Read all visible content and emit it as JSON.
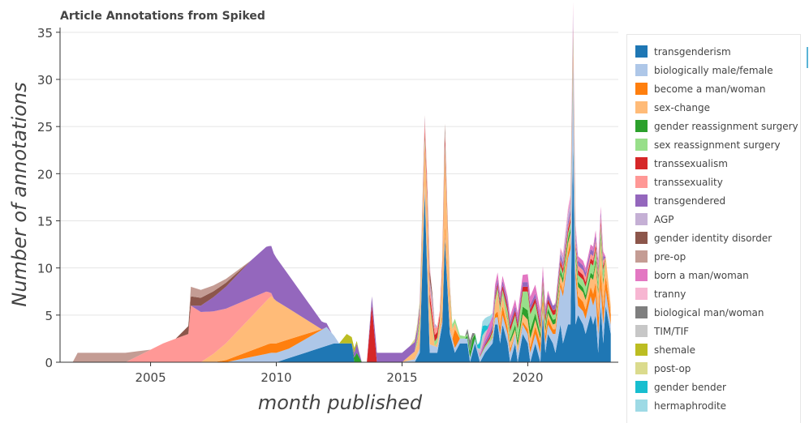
{
  "chart_data": {
    "type": "area",
    "title": "Article Annotations from Spiked",
    "xlabel": "month published",
    "ylabel": "Number of annotations",
    "xlim": [
      2001.4,
      2023.6
    ],
    "ylim": [
      0,
      35.5
    ],
    "y_ticks": [
      0,
      5,
      10,
      15,
      20,
      25,
      30,
      35
    ],
    "x_ticks": [
      2005,
      2010,
      2015,
      2020
    ],
    "grid": true,
    "legend_position": "right",
    "stacked": true,
    "series": [
      {
        "name": "transgenderism",
        "color": "#1f77b4",
        "points": [
          [
            2010,
            0
          ],
          [
            2012.3,
            2
          ],
          [
            2013,
            2
          ],
          [
            2013.1,
            0
          ],
          [
            2014,
            0
          ],
          [
            2015.5,
            0
          ],
          [
            2015.7,
            1
          ],
          [
            2015.9,
            18
          ],
          [
            2016.1,
            1
          ],
          [
            2016.4,
            1
          ],
          [
            2016.6,
            4
          ],
          [
            2016.7,
            13
          ],
          [
            2016.9,
            3
          ],
          [
            2017.1,
            1
          ],
          [
            2017.3,
            2
          ],
          [
            2017.6,
            2
          ],
          [
            2017.7,
            0
          ],
          [
            2017.9,
            2
          ],
          [
            2018.1,
            0
          ],
          [
            2018.3,
            1
          ],
          [
            2018.6,
            2
          ],
          [
            2018.7,
            4
          ],
          [
            2018.8,
            4
          ],
          [
            2018.9,
            2
          ],
          [
            2019,
            4
          ],
          [
            2019.2,
            2
          ],
          [
            2019.3,
            0
          ],
          [
            2019.5,
            2
          ],
          [
            2019.6,
            0
          ],
          [
            2019.8,
            3
          ],
          [
            2020,
            2
          ],
          [
            2020.1,
            0
          ],
          [
            2020.3,
            2
          ],
          [
            2020.5,
            0
          ],
          [
            2020.6,
            5
          ],
          [
            2020.7,
            1
          ],
          [
            2020.8,
            3
          ],
          [
            2021,
            2
          ],
          [
            2021.1,
            1
          ],
          [
            2021.3,
            4
          ],
          [
            2021.4,
            2
          ],
          [
            2021.5,
            3
          ],
          [
            2021.6,
            4
          ],
          [
            2021.7,
            4
          ],
          [
            2021.8,
            23
          ],
          [
            2021.9,
            4
          ],
          [
            2022,
            5
          ],
          [
            2022.2,
            4
          ],
          [
            2022.3,
            3
          ],
          [
            2022.5,
            5
          ],
          [
            2022.6,
            4
          ],
          [
            2022.7,
            5
          ],
          [
            2022.8,
            1
          ],
          [
            2022.9,
            6
          ],
          [
            2023,
            2
          ],
          [
            2023.1,
            6
          ],
          [
            2023.3,
            3
          ]
        ]
      },
      {
        "name": "biologically male/female",
        "color": "#aec7e8",
        "points": [
          [
            2008,
            0
          ],
          [
            2009.8,
            1
          ],
          [
            2010.5,
            1
          ],
          [
            2012,
            2
          ],
          [
            2012.5,
            0
          ],
          [
            2015,
            0
          ],
          [
            2015.8,
            0.5
          ],
          [
            2016,
            1
          ],
          [
            2016.5,
            0.5
          ],
          [
            2017,
            0.5
          ],
          [
            2018.5,
            0.5
          ],
          [
            2019,
            1
          ],
          [
            2020,
            1
          ],
          [
            2021,
            1
          ],
          [
            2021.8,
            9
          ],
          [
            2022,
            1
          ],
          [
            2022.5,
            2
          ],
          [
            2023,
            2
          ],
          [
            2023.3,
            1
          ]
        ]
      },
      {
        "name": "become a man/woman",
        "color": "#ff7f0e",
        "points": [
          [
            2007.5,
            0
          ],
          [
            2009.7,
            1
          ],
          [
            2010.5,
            1
          ],
          [
            2011.9,
            0
          ],
          [
            2016.5,
            0
          ],
          [
            2016.7,
            1
          ],
          [
            2017,
            0
          ],
          [
            2017.1,
            2
          ],
          [
            2017.3,
            0
          ],
          [
            2018.5,
            0
          ],
          [
            2019,
            1
          ],
          [
            2019.5,
            0
          ],
          [
            2020.5,
            1
          ],
          [
            2021,
            0.5
          ],
          [
            2021.5,
            0.5
          ],
          [
            2022,
            1
          ],
          [
            2022.5,
            1
          ],
          [
            2022.9,
            2
          ],
          [
            2023.3,
            1
          ]
        ]
      },
      {
        "name": "sex-change",
        "color": "#ffbb78",
        "points": [
          [
            2005.7,
            0
          ],
          [
            2007,
            0
          ],
          [
            2009.8,
            5
          ],
          [
            2011.8,
            0
          ],
          [
            2015,
            0
          ],
          [
            2015.6,
            1
          ],
          [
            2016,
            6
          ],
          [
            2016.3,
            0
          ],
          [
            2016.5,
            1
          ],
          [
            2016.7,
            8
          ],
          [
            2017,
            1
          ],
          [
            2017.3,
            0
          ],
          [
            2018.6,
            0
          ],
          [
            2018.8,
            2
          ],
          [
            2019,
            1
          ],
          [
            2019.5,
            0.5
          ],
          [
            2020,
            1
          ],
          [
            2020.5,
            0.5
          ],
          [
            2021,
            0.5
          ],
          [
            2021.5,
            1
          ],
          [
            2022,
            1
          ],
          [
            2022.5,
            1
          ],
          [
            2022.9,
            3
          ],
          [
            2023.1,
            2
          ],
          [
            2023.3,
            1
          ]
        ]
      },
      {
        "name": "gender reassignment surgery",
        "color": "#2ca02c",
        "points": [
          [
            2013,
            0
          ],
          [
            2013.2,
            1
          ],
          [
            2013.4,
            0
          ],
          [
            2017.5,
            0
          ],
          [
            2017.8,
            1
          ],
          [
            2018,
            0
          ],
          [
            2019,
            0
          ],
          [
            2020,
            1
          ],
          [
            2020.5,
            0.5
          ],
          [
            2021,
            0.5
          ],
          [
            2023,
            0.5
          ]
        ]
      },
      {
        "name": "sex reassignment surgery",
        "color": "#98df8a",
        "points": [
          [
            2015.5,
            0
          ],
          [
            2015.7,
            1
          ],
          [
            2016,
            0.5
          ],
          [
            2016.5,
            0.5
          ],
          [
            2017,
            0.5
          ],
          [
            2018,
            0
          ],
          [
            2019.5,
            1
          ],
          [
            2020,
            2
          ],
          [
            2020.5,
            0.5
          ],
          [
            2021.5,
            0.5
          ],
          [
            2022.5,
            1
          ],
          [
            2023,
            1
          ]
        ]
      },
      {
        "name": "transsexualism",
        "color": "#d62728",
        "points": [
          [
            2013,
            0
          ],
          [
            2013.6,
            0
          ],
          [
            2013.8,
            6
          ],
          [
            2014,
            0
          ],
          [
            2015.5,
            0
          ],
          [
            2016,
            1
          ],
          [
            2016.5,
            0.5
          ],
          [
            2016.7,
            1
          ],
          [
            2017,
            0
          ],
          [
            2018,
            0
          ],
          [
            2019,
            0.5
          ],
          [
            2021,
            0.5
          ],
          [
            2022,
            0.5
          ],
          [
            2023,
            0.5
          ]
        ]
      },
      {
        "name": "transsexuality",
        "color": "#ff9896",
        "points": [
          [
            2002,
            0
          ],
          [
            2004,
            0
          ],
          [
            2005.5,
            2
          ],
          [
            2006.5,
            3
          ],
          [
            2006.6,
            6
          ],
          [
            2009.6,
            1
          ],
          [
            2009.9,
            0
          ],
          [
            2012,
            0
          ],
          [
            2015.5,
            0
          ],
          [
            2016,
            1
          ],
          [
            2016.5,
            0.5
          ],
          [
            2017,
            0
          ],
          [
            2021,
            0
          ],
          [
            2022,
            0.5
          ],
          [
            2023,
            0.5
          ]
        ]
      },
      {
        "name": "transgendered",
        "color": "#9467bd",
        "points": [
          [
            2006.6,
            0
          ],
          [
            2009,
            4
          ],
          [
            2009.8,
            5
          ],
          [
            2012.2,
            0
          ],
          [
            2013,
            0
          ],
          [
            2013.2,
            1
          ],
          [
            2013.4,
            0
          ],
          [
            2013.6,
            0
          ],
          [
            2013.8,
            1
          ],
          [
            2015.5,
            1
          ],
          [
            2016,
            0
          ],
          [
            2018,
            0
          ],
          [
            2018.5,
            0.5
          ],
          [
            2020,
            0.5
          ],
          [
            2023,
            0.5
          ]
        ]
      },
      {
        "name": "AGP",
        "color": "#c5b0d5",
        "points": [
          [
            2016,
            0
          ],
          [
            2016.2,
            1
          ],
          [
            2016.4,
            0
          ],
          [
            2021,
            0
          ],
          [
            2021.8,
            1
          ],
          [
            2022,
            0
          ]
        ]
      },
      {
        "name": "gender identity disorder",
        "color": "#8c564b",
        "points": [
          [
            2006,
            0
          ],
          [
            2006.6,
            1
          ],
          [
            2009,
            0
          ],
          [
            2016,
            0
          ],
          [
            2016.1,
            1
          ],
          [
            2016.3,
            0
          ],
          [
            2016.6,
            0
          ],
          [
            2016.7,
            1
          ],
          [
            2016.8,
            0
          ]
        ]
      },
      {
        "name": "pre-op",
        "color": "#c49c94",
        "points": [
          [
            2001.9,
            0
          ],
          [
            2002.1,
            1
          ],
          [
            2004,
            1
          ],
          [
            2004.5,
            0.5
          ],
          [
            2005,
            0
          ],
          [
            2006.5,
            0
          ],
          [
            2006.6,
            1
          ],
          [
            2009,
            0
          ],
          [
            2015.8,
            0
          ],
          [
            2016,
            0.5
          ],
          [
            2016.2,
            0
          ]
        ]
      },
      {
        "name": "born a man/woman",
        "color": "#e377c2",
        "points": [
          [
            2018,
            0
          ],
          [
            2018.5,
            1
          ],
          [
            2019,
            0.5
          ],
          [
            2020.5,
            1
          ],
          [
            2021,
            0
          ],
          [
            2022,
            0.5
          ],
          [
            2023,
            0.5
          ]
        ]
      },
      {
        "name": "tranny",
        "color": "#f7b6d2",
        "points": [
          [
            2016,
            0
          ],
          [
            2016.1,
            0.5
          ],
          [
            2016.2,
            0
          ],
          [
            2021,
            0
          ],
          [
            2021.8,
            0.5
          ],
          [
            2022,
            0
          ]
        ]
      },
      {
        "name": "biological man/woman",
        "color": "#7f7f7f",
        "points": [
          [
            2017.5,
            0
          ],
          [
            2017.7,
            1
          ],
          [
            2017.9,
            0
          ]
        ]
      },
      {
        "name": "TIM/TIF",
        "color": "#c7c7c7",
        "points": [
          [
            2018,
            0
          ],
          [
            2018.2,
            1
          ],
          [
            2018.4,
            0
          ]
        ]
      },
      {
        "name": "shemale",
        "color": "#bcbd22",
        "points": [
          [
            2012.5,
            0
          ],
          [
            2012.8,
            1
          ],
          [
            2013.1,
            0.5
          ],
          [
            2013.3,
            0
          ]
        ]
      },
      {
        "name": "post-op",
        "color": "#dbdb8d",
        "points": [
          [
            2015.3,
            0
          ],
          [
            2015.6,
            0.5
          ],
          [
            2015.9,
            0
          ]
        ]
      },
      {
        "name": "gender bender",
        "color": "#17becf",
        "points": [
          [
            2017.9,
            0
          ],
          [
            2018.2,
            1
          ],
          [
            2018.5,
            0
          ]
        ]
      },
      {
        "name": "hermaphrodite",
        "color": "#9edae5",
        "points": [
          [
            2018,
            0
          ],
          [
            2018.4,
            1
          ],
          [
            2018.7,
            0
          ]
        ]
      }
    ]
  }
}
